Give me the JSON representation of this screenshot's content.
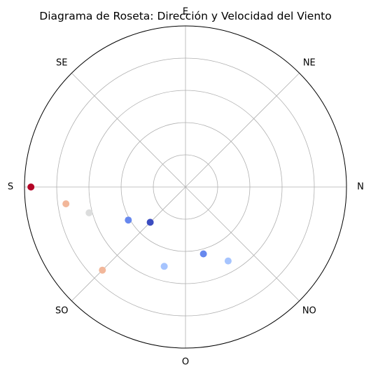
{
  "chart_data": {
    "type": "scatter",
    "projection": "polar",
    "title": "Diagrama de Roseta: Dirección y Velocidad del Viento",
    "direction_labels": [
      "E",
      "NE",
      "N",
      "NO",
      "O",
      "SO",
      "S",
      "SE"
    ],
    "rlim": [
      0,
      5
    ],
    "r_gridlines": [
      1,
      2,
      3,
      4
    ],
    "grid": true,
    "colormap": "coolwarm",
    "points": [
      {
        "theta_deg": 225,
        "r": 1.55,
        "color": "#3b4cc0"
      },
      {
        "theta_deg": 240,
        "r": 2.05,
        "color": "#6788ee"
      },
      {
        "theta_deg": 165,
        "r": 2.15,
        "color": "#6788ee"
      },
      {
        "theta_deg": 195,
        "r": 2.55,
        "color": "#a6c4fe"
      },
      {
        "theta_deg": 150,
        "r": 2.65,
        "color": "#a6c4fe"
      },
      {
        "theta_deg": 255,
        "r": 3.1,
        "color": "#dcdddd"
      },
      {
        "theta_deg": 225,
        "r": 3.65,
        "color": "#f2b79a"
      },
      {
        "theta_deg": 262,
        "r": 3.75,
        "color": "#f2b79a"
      },
      {
        "theta_deg": 270,
        "r": 4.8,
        "color": "#b40426"
      }
    ]
  }
}
